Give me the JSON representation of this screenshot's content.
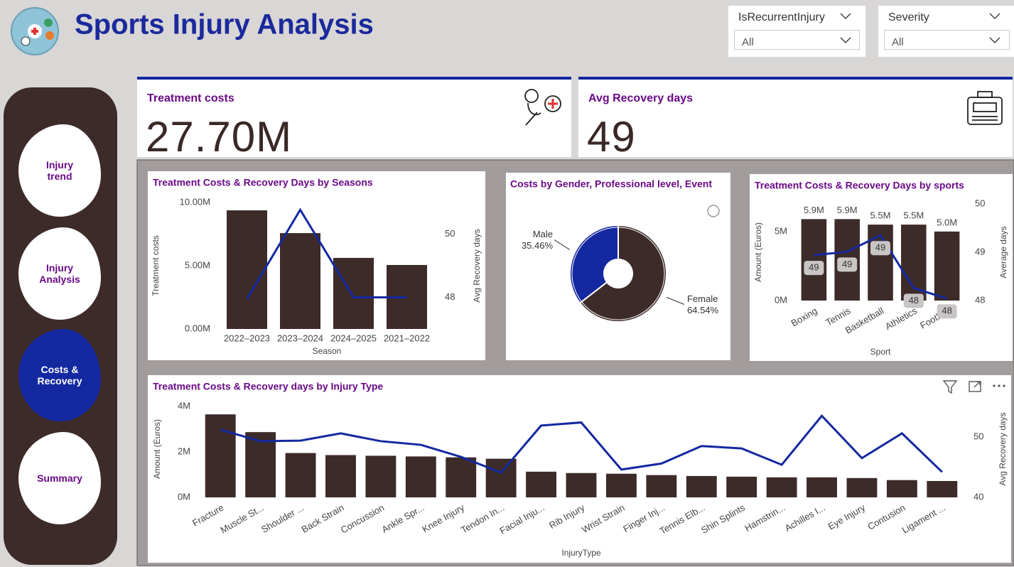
{
  "header": {
    "title": "Sports Injury Analysis"
  },
  "filters": [
    {
      "label": "IsRecurrentInjury",
      "value": "All"
    },
    {
      "label": "Severity",
      "value": "All"
    }
  ],
  "nav": [
    "Injury trend",
    "Injury Analysis",
    "Costs & Recovery",
    "Summary"
  ],
  "kpis": [
    {
      "label": "Treatment costs",
      "value": "27.70M"
    },
    {
      "label": "Avg Recovery days",
      "value": "49"
    }
  ],
  "chart_data": [
    {
      "type": "combo",
      "title": "Treatment Costs & Recovery Days by Seasons",
      "categories": [
        "2022–2023",
        "2023–2024",
        "2024–2025",
        "2021–2022"
      ],
      "series": [
        {
          "color": "#3d2b29",
          "values": [
            9380000,
            7580000,
            5620000,
            5060000
          ]
        },
        {
          "color": "#1428a0",
          "axis": "y2",
          "values": [
            47.95,
            50.77,
            48.0,
            48.0
          ]
        }
      ],
      "ylim": [
        0,
        10000000
      ],
      "yticks": [
        {
          "value": 0,
          "label": "0.00M"
        },
        {
          "value": 5000000,
          "label": "5.00M"
        },
        {
          "value": 10000000,
          "label": "10.00M"
        }
      ],
      "y2lim": [
        47,
        51
      ],
      "y2ticks": [
        48,
        50
      ],
      "xlabel": "Season",
      "ylabel": "Treatment costs",
      "y2label": "Avg Recovery days"
    },
    {
      "type": "pie",
      "title": "Costs by Gender, Professional level, Event",
      "categories": [
        "Male",
        "Female"
      ],
      "values": [
        35.46,
        64.54
      ],
      "value_labels": [
        "35.46%",
        "64.54%"
      ],
      "colors": [
        "#1428a0",
        "#3d2b29"
      ],
      "donut": true
    },
    {
      "type": "combo",
      "title": "Treatment Costs & Recovery Days by sports",
      "categories": [
        "Boxing",
        "Tennis",
        "Basketball",
        "Athletics",
        "Football"
      ],
      "series": [
        {
          "color": "#3d2b29",
          "values": [
            5900000,
            5900000,
            5500000,
            5500000,
            5000000
          ],
          "value_labels": [
            "5.9M",
            "5.9M",
            "5.5M",
            "5.5M",
            "5.0M"
          ]
        },
        {
          "color": "#1428a0",
          "axis": "y2",
          "values": [
            48.94,
            49.01,
            49.35,
            48.26,
            48.04
          ],
          "value_labels": [
            "49",
            "49",
            "49",
            "48",
            "48"
          ]
        }
      ],
      "ylim": [
        0,
        7000000
      ],
      "yticks": [
        {
          "value": 0,
          "label": "0M"
        },
        {
          "value": 5000000,
          "label": "5M"
        }
      ],
      "y2lim": [
        48,
        50
      ],
      "y2ticks": [
        48,
        49,
        50
      ],
      "xlabel": "Sport",
      "ylabel": "Amount (Euros)",
      "y2label": "Average days"
    },
    {
      "type": "combo",
      "title": "Treatment Costs & Recovery days by Injury Type",
      "categories": [
        "Fracture",
        "Muscle St...",
        "Shoulder ...",
        "Back Strain",
        "Concussion",
        "Ankle Spr...",
        "Knee Injury",
        "Tendon In...",
        "Facial Inju...",
        "Rib Injury",
        "Wrist Strain",
        "Finger Inj...",
        "Tennis Elb...",
        "Shin Splints",
        "Hamstrin...",
        "Achilles I...",
        "Eye Injury",
        "Contusion",
        "Ligament ..."
      ],
      "series": [
        {
          "color": "#3d2b29",
          "values": [
            3650000,
            2870000,
            1950000,
            1860000,
            1830000,
            1800000,
            1760000,
            1700000,
            1130000,
            1070000,
            1040000,
            980000,
            940000,
            910000,
            880000,
            880000,
            850000,
            760000,
            720000
          ]
        },
        {
          "color": "#1428a0",
          "axis": "y2",
          "values": [
            51.2,
            49.3,
            49.4,
            50.6,
            49.3,
            48.7,
            46.7,
            44.1,
            51.9,
            52.4,
            44.6,
            45.6,
            48.5,
            48.1,
            45.4,
            53.5,
            46.5,
            50.6,
            44.2
          ]
        }
      ],
      "ylim": [
        0,
        4250000
      ],
      "yticks": [
        {
          "value": 0,
          "label": "0M"
        },
        {
          "value": 2000000,
          "label": "2M"
        },
        {
          "value": 4000000,
          "label": "4M"
        }
      ],
      "y2lim": [
        40,
        56
      ],
      "y2ticks": [
        40,
        50
      ],
      "xlabel": "InjuryType",
      "ylabel": "Amount (Euros)",
      "y2label": "Avg Recovery days"
    }
  ]
}
